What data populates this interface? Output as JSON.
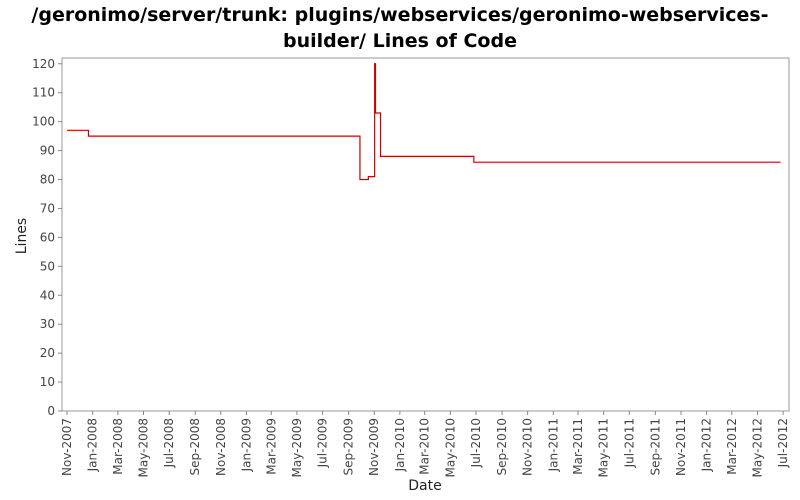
{
  "chart_data": {
    "type": "line",
    "title_lines": [
      "/geronimo/server/trunk: plugins/webservices/geronimo-webservices-",
      "builder/ Lines of Code"
    ],
    "xlabel": "Date",
    "ylabel": "Lines",
    "ylim": [
      0,
      122
    ],
    "yticks": [
      0,
      10,
      20,
      30,
      40,
      50,
      60,
      70,
      80,
      90,
      100,
      110,
      120
    ],
    "xlim": [
      "2007-10-20",
      "2012-07-15"
    ],
    "xticks": [
      {
        "date": "2007-11-01",
        "label": "Nov-2007"
      },
      {
        "date": "2008-01-01",
        "label": "Jan-2008"
      },
      {
        "date": "2008-03-01",
        "label": "Mar-2008"
      },
      {
        "date": "2008-05-01",
        "label": "May-2008"
      },
      {
        "date": "2008-07-01",
        "label": "Jul-2008"
      },
      {
        "date": "2008-09-01",
        "label": "Sep-2008"
      },
      {
        "date": "2008-11-01",
        "label": "Nov-2008"
      },
      {
        "date": "2009-01-01",
        "label": "Jan-2009"
      },
      {
        "date": "2009-03-01",
        "label": "Mar-2009"
      },
      {
        "date": "2009-05-01",
        "label": "May-2009"
      },
      {
        "date": "2009-07-01",
        "label": "Jul-2009"
      },
      {
        "date": "2009-09-01",
        "label": "Sep-2009"
      },
      {
        "date": "2009-11-01",
        "label": "Nov-2009"
      },
      {
        "date": "2010-01-01",
        "label": "Jan-2010"
      },
      {
        "date": "2010-03-01",
        "label": "Mar-2010"
      },
      {
        "date": "2010-05-01",
        "label": "May-2010"
      },
      {
        "date": "2010-07-01",
        "label": "Jul-2010"
      },
      {
        "date": "2010-09-01",
        "label": "Sep-2010"
      },
      {
        "date": "2010-11-01",
        "label": "Nov-2010"
      },
      {
        "date": "2011-01-01",
        "label": "Jan-2011"
      },
      {
        "date": "2011-03-01",
        "label": "Mar-2011"
      },
      {
        "date": "2011-05-01",
        "label": "May-2011"
      },
      {
        "date": "2011-07-01",
        "label": "Jul-2011"
      },
      {
        "date": "2011-09-01",
        "label": "Sep-2011"
      },
      {
        "date": "2011-11-01",
        "label": "Nov-2011"
      },
      {
        "date": "2012-01-01",
        "label": "Jan-2012"
      },
      {
        "date": "2012-03-01",
        "label": "Mar-2012"
      },
      {
        "date": "2012-05-01",
        "label": "May-2012"
      },
      {
        "date": "2012-07-01",
        "label": "Jul-2012"
      }
    ],
    "grid": false,
    "line_color": "#cc0000",
    "series": [
      {
        "step": true,
        "points": [
          {
            "x": "2007-11-01",
            "y": 97
          },
          {
            "x": "2007-12-22",
            "y": 95
          },
          {
            "x": "2009-09-28",
            "y": 80
          },
          {
            "x": "2009-10-18",
            "y": 81
          },
          {
            "x": "2009-11-02",
            "y": 120
          },
          {
            "x": "2009-11-04",
            "y": 103
          },
          {
            "x": "2009-11-16",
            "y": 88
          },
          {
            "x": "2010-06-26",
            "y": 86
          },
          {
            "x": "2012-06-25",
            "y": 86
          }
        ]
      }
    ]
  }
}
